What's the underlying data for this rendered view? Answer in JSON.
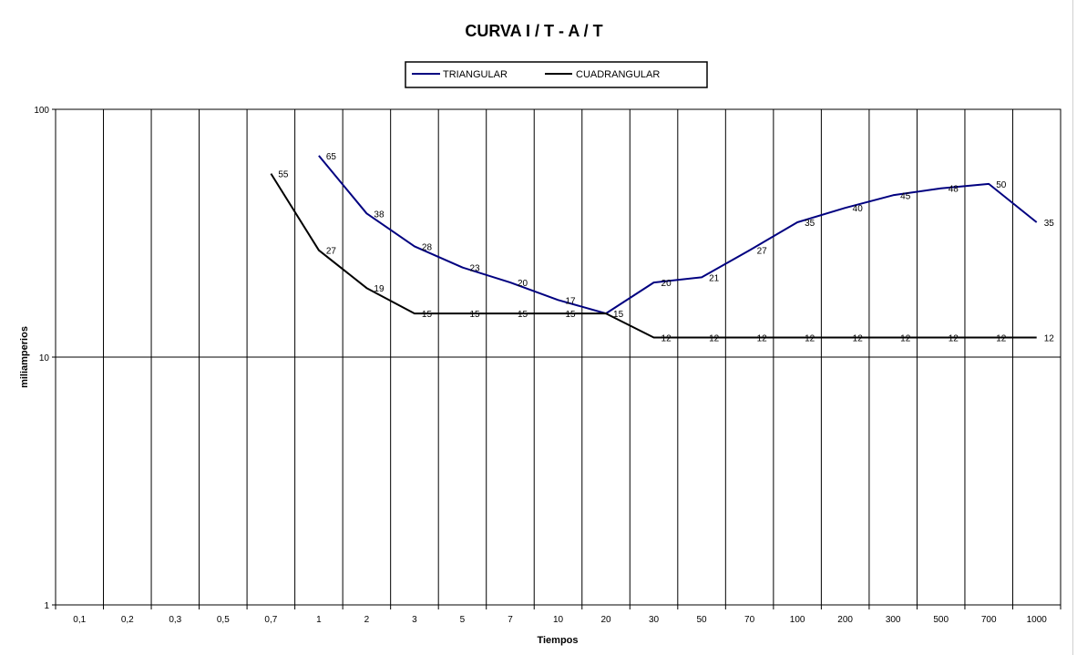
{
  "chart_data": {
    "type": "line",
    "title": "CURVA I / T - A / T",
    "xlabel": "Tiempos",
    "ylabel": "miliamperios",
    "yscale": "log",
    "ylim": [
      1,
      100
    ],
    "yticks": [
      "1",
      "10",
      "100"
    ],
    "grid": true,
    "legend_position": "top",
    "categories": [
      "0,1",
      "0,2",
      "0,3",
      "0,5",
      "0,7",
      "1",
      "2",
      "3",
      "5",
      "7",
      "10",
      "20",
      "30",
      "50",
      "70",
      "100",
      "200",
      "300",
      "500",
      "700",
      "1000"
    ],
    "series": [
      {
        "name": "TRIANGULAR",
        "color": "#000080",
        "values": [
          null,
          null,
          null,
          null,
          null,
          65,
          38,
          28,
          23,
          20,
          17,
          15,
          20,
          21,
          27,
          35,
          40,
          45,
          48,
          50,
          35
        ],
        "labels": [
          "",
          "",
          "",
          "",
          "",
          "65",
          "38",
          "28",
          "23",
          "20",
          "17",
          "15",
          "20",
          "21",
          "27",
          "35",
          "40",
          "45",
          "48",
          "50",
          "35"
        ]
      },
      {
        "name": "CUADRANGULAR",
        "color": "#000000",
        "values": [
          null,
          null,
          null,
          null,
          55,
          27,
          19,
          15,
          15,
          15,
          15,
          15,
          12,
          12,
          12,
          12,
          12,
          12,
          12,
          12,
          12
        ],
        "labels": [
          "",
          "",
          "",
          "",
          "55",
          "27",
          "19",
          "15",
          "15",
          "15",
          "15",
          "",
          "12",
          "12",
          "12",
          "12",
          "12",
          "12",
          "12",
          "12",
          "12"
        ]
      }
    ]
  }
}
